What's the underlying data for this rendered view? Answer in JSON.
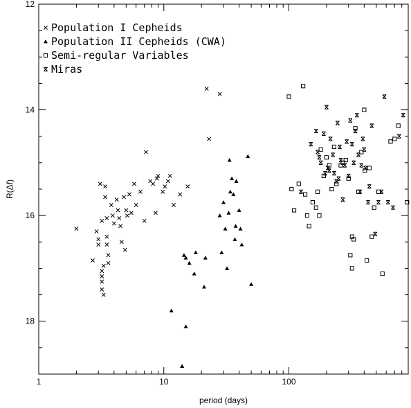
{
  "chart_data": {
    "type": "scatter",
    "xlabel": "period (days)",
    "ylabel": "R(Δf)",
    "x_scale": "log",
    "xlim": [
      1,
      900
    ],
    "ylim": [
      19,
      12
    ],
    "y_inverted": true,
    "x_ticks": [
      1,
      10,
      100
    ],
    "x_tick_labels": [
      "1",
      "10",
      "100"
    ],
    "y_ticks": [
      12,
      14,
      16,
      18
    ],
    "y_tick_labels": [
      "12",
      "14",
      "16",
      "18"
    ],
    "grid": false,
    "legend_position": "top-left",
    "series": [
      {
        "name": "Population I Cepheids",
        "marker": "cross",
        "points": [
          [
            2.0,
            16.25
          ],
          [
            2.7,
            16.85
          ],
          [
            2.9,
            16.3
          ],
          [
            3.0,
            16.45
          ],
          [
            3.0,
            16.55
          ],
          [
            3.1,
            15.4
          ],
          [
            3.2,
            16.1
          ],
          [
            3.2,
            17.05
          ],
          [
            3.2,
            17.15
          ],
          [
            3.2,
            17.25
          ],
          [
            3.2,
            17.4
          ],
          [
            3.3,
            17.5
          ],
          [
            3.3,
            16.95
          ],
          [
            3.4,
            15.45
          ],
          [
            3.4,
            15.65
          ],
          [
            3.5,
            16.05
          ],
          [
            3.5,
            16.4
          ],
          [
            3.5,
            16.55
          ],
          [
            3.6,
            16.75
          ],
          [
            3.6,
            16.9
          ],
          [
            3.8,
            15.8
          ],
          [
            3.9,
            16.0
          ],
          [
            4.0,
            16.15
          ],
          [
            4.2,
            15.7
          ],
          [
            4.3,
            15.9
          ],
          [
            4.4,
            16.05
          ],
          [
            4.5,
            16.2
          ],
          [
            4.6,
            16.5
          ],
          [
            4.8,
            15.65
          ],
          [
            4.9,
            16.65
          ],
          [
            5.0,
            15.9
          ],
          [
            5.1,
            16.0
          ],
          [
            5.3,
            15.6
          ],
          [
            5.5,
            15.95
          ],
          [
            5.8,
            15.4
          ],
          [
            6.0,
            15.8
          ],
          [
            6.5,
            15.55
          ],
          [
            7.0,
            16.1
          ],
          [
            7.2,
            14.8
          ],
          [
            7.8,
            15.35
          ],
          [
            8.2,
            15.4
          ],
          [
            8.6,
            15.95
          ],
          [
            8.8,
            15.3
          ],
          [
            9.0,
            15.25
          ],
          [
            9.8,
            15.55
          ],
          [
            10.2,
            15.45
          ],
          [
            10.8,
            15.35
          ],
          [
            11.2,
            15.25
          ],
          [
            12.0,
            15.8
          ],
          [
            13.5,
            15.6
          ],
          [
            15.5,
            15.45
          ],
          [
            22.0,
            13.6
          ],
          [
            23.0,
            14.55
          ],
          [
            28.0,
            13.7
          ]
        ]
      },
      {
        "name": "Population II Cepheids (CWA)",
        "marker": "triangle",
        "points": [
          [
            11.5,
            17.8
          ],
          [
            14.5,
            16.75
          ],
          [
            15.0,
            16.8
          ],
          [
            15.0,
            18.1
          ],
          [
            16.0,
            16.9
          ],
          [
            17.5,
            17.1
          ],
          [
            18.0,
            16.7
          ],
          [
            21.0,
            17.35
          ],
          [
            21.5,
            16.8
          ],
          [
            14.0,
            18.85
          ],
          [
            28.0,
            16.0
          ],
          [
            29.0,
            16.7
          ],
          [
            30.0,
            15.75
          ],
          [
            31.0,
            16.25
          ],
          [
            32.0,
            17.0
          ],
          [
            33.0,
            15.95
          ],
          [
            34.0,
            15.55
          ],
          [
            35.0,
            15.3
          ],
          [
            36.0,
            15.6
          ],
          [
            37.0,
            16.45
          ],
          [
            37.5,
            16.2
          ],
          [
            38.0,
            15.35
          ],
          [
            40.0,
            15.9
          ],
          [
            41.0,
            16.25
          ],
          [
            42.0,
            16.55
          ],
          [
            33.5,
            14.95
          ],
          [
            47.0,
            14.88
          ],
          [
            50.0,
            17.3
          ]
        ]
      },
      {
        "name": "Semi-regular Variables",
        "marker": "square",
        "points": [
          [
            100,
            13.75
          ],
          [
            105,
            15.5
          ],
          [
            110,
            15.9
          ],
          [
            120,
            15.4
          ],
          [
            130,
            13.55
          ],
          [
            135,
            15.6
          ],
          [
            140,
            16.0
          ],
          [
            145,
            16.2
          ],
          [
            155,
            15.75
          ],
          [
            165,
            15.85
          ],
          [
            170,
            15.55
          ],
          [
            175,
            16.0
          ],
          [
            180,
            14.75
          ],
          [
            190,
            15.25
          ],
          [
            200,
            14.9
          ],
          [
            210,
            15.05
          ],
          [
            220,
            15.5
          ],
          [
            230,
            14.7
          ],
          [
            240,
            15.4
          ],
          [
            260,
            15.05
          ],
          [
            270,
            15.0
          ],
          [
            285,
            14.95
          ],
          [
            300,
            15.3
          ],
          [
            310,
            16.75
          ],
          [
            320,
            17.0
          ],
          [
            320,
            16.4
          ],
          [
            330,
            16.45
          ],
          [
            340,
            14.35
          ],
          [
            360,
            15.55
          ],
          [
            380,
            14.8
          ],
          [
            400,
            14.0
          ],
          [
            405,
            15.15
          ],
          [
            420,
            16.85
          ],
          [
            440,
            15.1
          ],
          [
            460,
            16.4
          ],
          [
            480,
            15.85
          ],
          [
            520,
            15.55
          ],
          [
            560,
            17.1
          ],
          [
            650,
            14.6
          ],
          [
            700,
            14.55
          ],
          [
            750,
            14.3
          ],
          [
            880,
            15.75
          ]
        ]
      },
      {
        "name": "Miras",
        "marker": "star",
        "points": [
          [
            125,
            15.55
          ],
          [
            150,
            14.65
          ],
          [
            165,
            14.4
          ],
          [
            170,
            14.8
          ],
          [
            175,
            14.9
          ],
          [
            180,
            15.0
          ],
          [
            190,
            14.45
          ],
          [
            195,
            15.2
          ],
          [
            200,
            13.95
          ],
          [
            205,
            15.1
          ],
          [
            210,
            15.15
          ],
          [
            215,
            14.55
          ],
          [
            225,
            14.85
          ],
          [
            230,
            15.2
          ],
          [
            240,
            15.35
          ],
          [
            245,
            14.25
          ],
          [
            250,
            15.3
          ],
          [
            255,
            14.7
          ],
          [
            260,
            14.95
          ],
          [
            270,
            15.7
          ],
          [
            280,
            15.05
          ],
          [
            290,
            14.6
          ],
          [
            300,
            15.25
          ],
          [
            310,
            14.2
          ],
          [
            320,
            14.65
          ],
          [
            330,
            15.0
          ],
          [
            340,
            14.4
          ],
          [
            350,
            14.1
          ],
          [
            360,
            14.85
          ],
          [
            370,
            15.55
          ],
          [
            380,
            15.05
          ],
          [
            390,
            14.55
          ],
          [
            400,
            14.75
          ],
          [
            410,
            15.1
          ],
          [
            430,
            15.75
          ],
          [
            440,
            15.45
          ],
          [
            460,
            14.3
          ],
          [
            490,
            16.35
          ],
          [
            520,
            15.75
          ],
          [
            550,
            15.55
          ],
          [
            580,
            13.75
          ],
          [
            620,
            15.75
          ],
          [
            680,
            15.85
          ],
          [
            760,
            14.5
          ],
          [
            820,
            14.1
          ]
        ]
      }
    ]
  }
}
